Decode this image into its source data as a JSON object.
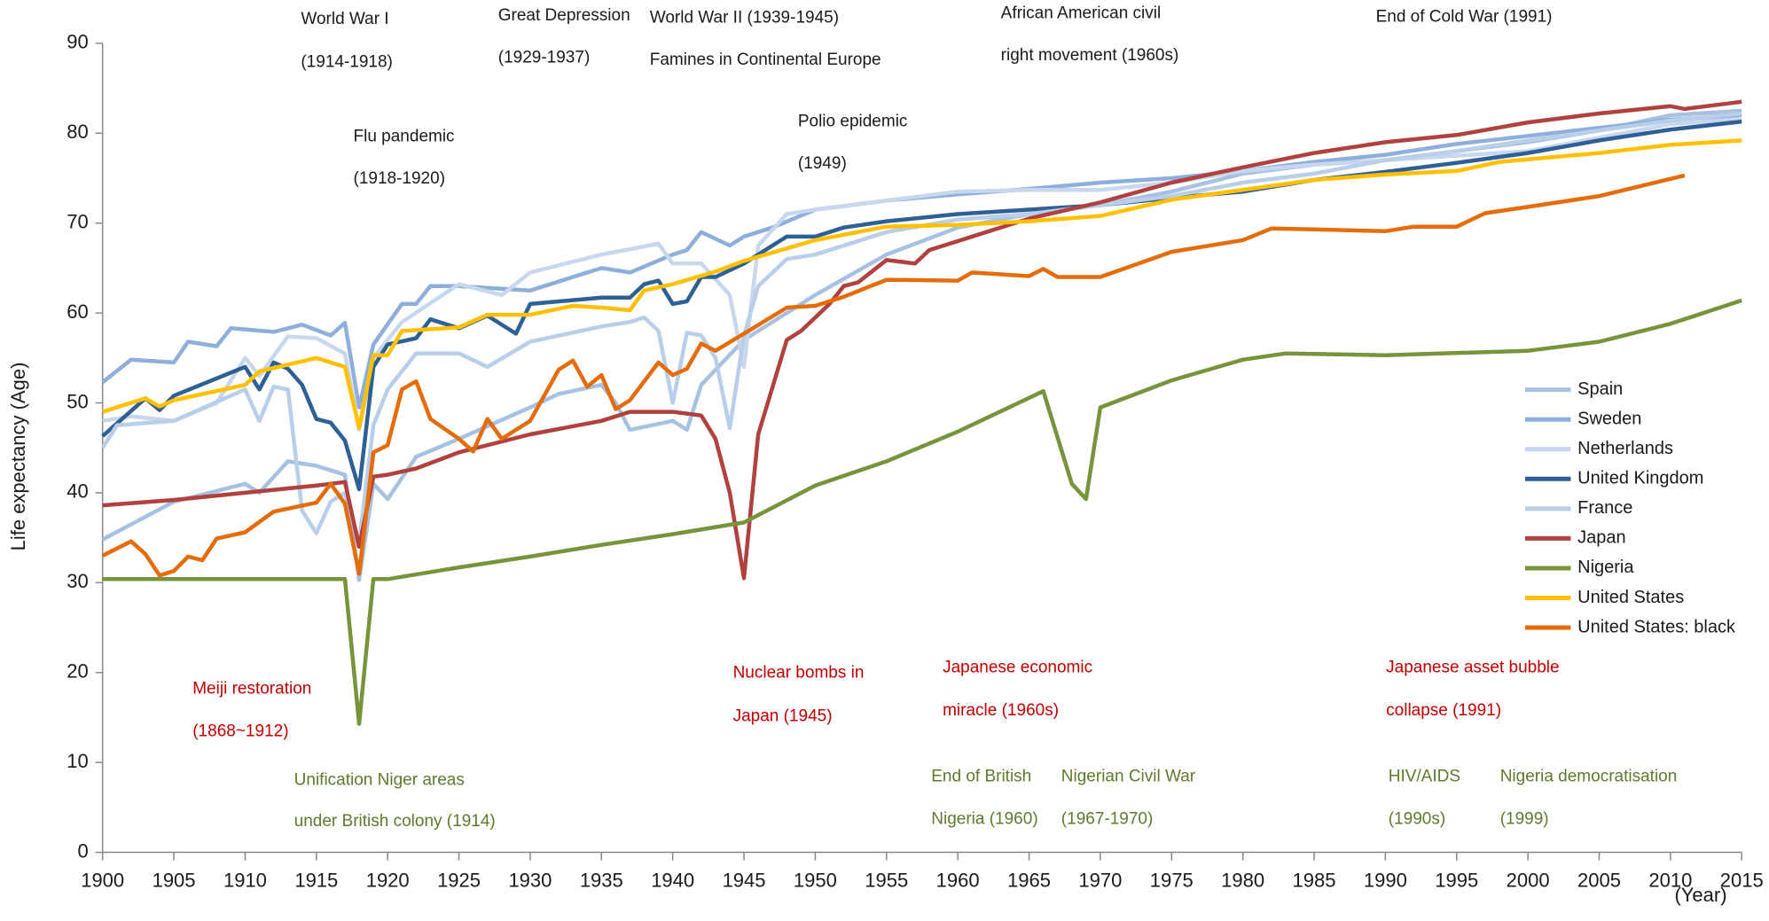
{
  "chart_data": {
    "type": "line",
    "ylabel": "Life expectancy (Age)",
    "xlabel": "(Year)",
    "xlim": [
      1900,
      2015
    ],
    "ylim": [
      0,
      90
    ],
    "xticks": [
      1900,
      1905,
      1910,
      1915,
      1920,
      1925,
      1930,
      1935,
      1940,
      1945,
      1950,
      1955,
      1960,
      1965,
      1970,
      1975,
      1980,
      1985,
      1990,
      1995,
      2000,
      2005,
      2010,
      2015
    ],
    "yticks": [
      0,
      10,
      20,
      30,
      40,
      50,
      60,
      70,
      80,
      90
    ],
    "legend": "right",
    "series": [
      {
        "name": "Spain",
        "color": "#a7c1e2",
        "x": [
          1900,
          1905,
          1910,
          1911,
          1913,
          1915,
          1917,
          1918,
          1919,
          1920,
          1922,
          1925,
          1930,
          1932,
          1935,
          1936,
          1937,
          1940,
          1941,
          1942,
          1945,
          1946,
          1950,
          1955,
          1960,
          1965,
          1970,
          1975,
          1980,
          1985,
          1990,
          1995,
          2000,
          2005,
          2010,
          2015
        ],
        "values": [
          34.8,
          39,
          41,
          40,
          43.5,
          43,
          42,
          30.3,
          41,
          39.3,
          44,
          46,
          49.5,
          51,
          52,
          50,
          47,
          48,
          47,
          52,
          57,
          58,
          62,
          66.5,
          69.5,
          71,
          72,
          73.5,
          75.5,
          76.5,
          77,
          78,
          79,
          80.3,
          82,
          82.5
        ]
      },
      {
        "name": "Sweden",
        "color": "#8eafdc",
        "x": [
          1900,
          1902,
          1905,
          1906,
          1908,
          1909,
          1912,
          1914,
          1916,
          1917,
          1918,
          1919,
          1921,
          1922,
          1923,
          1925,
          1930,
          1935,
          1937,
          1940,
          1941,
          1942,
          1944,
          1945,
          1947,
          1950,
          1955,
          1960,
          1965,
          1970,
          1975,
          1980,
          1985,
          1990,
          1995,
          2000,
          2005,
          2010,
          2015
        ],
        "values": [
          52.3,
          54.8,
          54.5,
          56.8,
          56.3,
          58.3,
          57.9,
          58.7,
          57.5,
          58.9,
          49.5,
          56.5,
          61,
          61,
          63,
          63,
          62.5,
          65,
          64.5,
          66.5,
          67,
          69,
          67.5,
          68.5,
          69.5,
          71.5,
          72.5,
          73.2,
          73.8,
          74.5,
          75,
          75.8,
          76.8,
          77.6,
          78.8,
          79.7,
          80.6,
          81.5,
          82
        ]
      },
      {
        "name": "Netherlands",
        "color": "#c6d7ee",
        "x": [
          1900,
          1902,
          1905,
          1908,
          1910,
          1911,
          1913,
          1915,
          1917,
          1918,
          1919,
          1921,
          1925,
          1928,
          1930,
          1935,
          1939,
          1940,
          1942,
          1944,
          1945,
          1946,
          1948,
          1950,
          1955,
          1960,
          1965,
          1970,
          1975,
          1980,
          1985,
          1990,
          1995,
          2000,
          2005,
          2010,
          2015
        ],
        "values": [
          48,
          48.5,
          48,
          50,
          55,
          53,
          57.4,
          57.2,
          55.5,
          47,
          55,
          59,
          63.2,
          62,
          64.5,
          66.5,
          67.7,
          65.5,
          65.5,
          62,
          54,
          67.5,
          71,
          71.5,
          72.5,
          73.5,
          73.7,
          73.7,
          74.5,
          75.8,
          76.5,
          77,
          77.5,
          78,
          79.5,
          81,
          81.6
        ]
      },
      {
        "name": "United Kingdom",
        "color": "#2e5f95",
        "x": [
          1900,
          1903,
          1904,
          1905,
          1910,
          1911,
          1912,
          1913,
          1914,
          1915,
          1916,
          1917,
          1918,
          1919,
          1920,
          1922,
          1923,
          1925,
          1927,
          1929,
          1930,
          1935,
          1937,
          1938,
          1939,
          1940,
          1941,
          1942,
          1943,
          1945,
          1948,
          1950,
          1952,
          1955,
          1960,
          1965,
          1970,
          1975,
          1980,
          1985,
          1990,
          1995,
          2000,
          2005,
          2010,
          2015
        ],
        "values": [
          46.3,
          50.5,
          49.2,
          50.8,
          54,
          51.5,
          54.5,
          53.8,
          52,
          48.2,
          47.8,
          45.8,
          40.4,
          54,
          56.5,
          57.2,
          59.3,
          58.3,
          59.7,
          57.7,
          61,
          61.7,
          61.7,
          63.2,
          63.6,
          61,
          61.3,
          64,
          64,
          65.5,
          68.5,
          68.5,
          69.5,
          70.2,
          71,
          71.5,
          72,
          72.8,
          73.5,
          74.8,
          75.7,
          76.7,
          77.8,
          79.2,
          80.4,
          81.3
        ]
      },
      {
        "name": "France",
        "color": "#b9cee9",
        "x": [
          1900,
          1901,
          1905,
          1910,
          1911,
          1912,
          1913,
          1914,
          1915,
          1916,
          1917,
          1918,
          1919,
          1920,
          1922,
          1925,
          1927,
          1930,
          1935,
          1937,
          1938,
          1939,
          1940,
          1941,
          1942,
          1943,
          1944,
          1945,
          1946,
          1948,
          1950,
          1955,
          1960,
          1965,
          1970,
          1975,
          1980,
          1985,
          1990,
          1995,
          2000,
          2005,
          2010,
          2015
        ],
        "values": [
          45,
          47.5,
          48,
          51.5,
          48,
          51.8,
          51.5,
          38,
          35.5,
          39,
          40,
          34.5,
          47.5,
          51.5,
          55.5,
          55.5,
          54,
          56.8,
          58.5,
          59,
          59.5,
          58,
          50,
          57.8,
          57.5,
          55,
          47.2,
          57.5,
          63,
          66,
          66.5,
          69,
          70.4,
          71,
          72,
          73,
          74.5,
          75.5,
          77,
          78,
          79.2,
          80.3,
          81.4,
          82.2
        ]
      },
      {
        "name": "Japan",
        "color": "#b0413e",
        "x": [
          1900,
          1905,
          1910,
          1915,
          1917,
          1918,
          1919,
          1920,
          1922,
          1925,
          1930,
          1935,
          1937,
          1940,
          1942,
          1943,
          1944,
          1945,
          1946,
          1948,
          1949,
          1950,
          1951,
          1952,
          1953,
          1955,
          1957,
          1958,
          1960,
          1962,
          1965,
          1970,
          1975,
          1980,
          1985,
          1990,
          1995,
          2000,
          2005,
          2010,
          2011,
          2015
        ],
        "values": [
          38.6,
          39.2,
          40,
          40.8,
          41.2,
          34,
          41.8,
          42,
          42.7,
          44.5,
          46.5,
          48,
          49,
          49,
          48.6,
          46,
          40,
          30.5,
          46.5,
          57,
          58,
          59.5,
          61,
          63,
          63.4,
          65.9,
          65.5,
          67,
          68,
          69,
          70.5,
          72.3,
          74.5,
          76.2,
          77.8,
          79,
          79.8,
          81.2,
          82.2,
          83,
          82.7,
          83.5
        ]
      },
      {
        "name": "Nigeria",
        "color": "#77933c",
        "x": [
          1900,
          1917,
          1918,
          1919,
          1920,
          1925,
          1930,
          1935,
          1940,
          1945,
          1950,
          1955,
          1960,
          1966,
          1968,
          1969,
          1970,
          1975,
          1980,
          1983,
          1990,
          2000,
          2005,
          2010,
          2015
        ],
        "values": [
          30.4,
          30.4,
          14.3,
          30.4,
          30.4,
          31.7,
          32.9,
          34.2,
          35.4,
          36.7,
          40.8,
          43.5,
          46.8,
          51.3,
          41,
          39.3,
          49.5,
          52.5,
          54.8,
          55.5,
          55.3,
          55.8,
          56.8,
          58.8,
          61.4
        ]
      },
      {
        "name": "United States",
        "color": "#ffc000",
        "x": [
          1900,
          1903,
          1904,
          1905,
          1910,
          1911,
          1915,
          1917,
          1918,
          1919,
          1920,
          1921,
          1925,
          1927,
          1930,
          1933,
          1935,
          1937,
          1938,
          1940,
          1943,
          1945,
          1950,
          1955,
          1960,
          1965,
          1970,
          1975,
          1980,
          1985,
          1990,
          1995,
          1998,
          2000,
          2005,
          2010,
          2015
        ],
        "values": [
          49,
          50.5,
          49.6,
          50.3,
          52,
          53.5,
          55,
          54,
          47.2,
          55.3,
          55.3,
          58,
          58.4,
          59.8,
          59.8,
          60.8,
          60.6,
          60.3,
          62.5,
          63.2,
          64.6,
          65.8,
          68.1,
          69.6,
          69.8,
          70.2,
          70.8,
          72.6,
          73.7,
          74.8,
          75.4,
          75.8,
          76.8,
          77.1,
          77.8,
          78.7,
          79.2
        ]
      },
      {
        "name": "United States: black",
        "color": "#e46c0a",
        "x": [
          1900,
          1902,
          1903,
          1904,
          1905,
          1906,
          1907,
          1908,
          1910,
          1912,
          1915,
          1916,
          1917,
          1918,
          1919,
          1920,
          1921,
          1922,
          1923,
          1925,
          1926,
          1927,
          1928,
          1930,
          1932,
          1933,
          1934,
          1935,
          1936,
          1937,
          1939,
          1940,
          1941,
          1942,
          1943,
          1945,
          1948,
          1950,
          1952,
          1955,
          1960,
          1961,
          1965,
          1966,
          1967,
          1970,
          1975,
          1980,
          1982,
          1985,
          1990,
          1992,
          1995,
          1997,
          2000,
          2005,
          2011
        ],
        "values": [
          33,
          34.6,
          33.2,
          30.8,
          31.3,
          32.9,
          32.5,
          34.9,
          35.6,
          37.9,
          38.9,
          41,
          38.8,
          31,
          44.5,
          45.3,
          51.5,
          52.4,
          48.2,
          46,
          44.6,
          48.2,
          46,
          48,
          53.7,
          54.7,
          51.8,
          53.1,
          49.3,
          50.3,
          54.5,
          53.1,
          53.8,
          56.6,
          55.8,
          57.7,
          60.6,
          60.8,
          61.8,
          63.7,
          63.6,
          64.5,
          64.1,
          64.9,
          64,
          64,
          66.8,
          68.1,
          69.4,
          69.3,
          69.1,
          69.6,
          69.6,
          71.1,
          71.8,
          73,
          75.3
        ]
      }
    ],
    "annotations": [
      {
        "lines": [
          "World War I",
          "(1914-1918)"
        ],
        "color": "#1a1a1a"
      },
      {
        "lines": [
          "Great Depression",
          "(1929-1937)"
        ],
        "color": "#1a1a1a"
      },
      {
        "lines": [
          "World War II (1939-1945)",
          "Famines in Continental Europe"
        ],
        "color": "#1a1a1a"
      },
      {
        "lines": [
          "African American civil",
          "right movement (1960s)"
        ],
        "color": "#1a1a1a"
      },
      {
        "lines": [
          "End of Cold War (1991)"
        ],
        "color": "#1a1a1a"
      },
      {
        "lines": [
          "Flu pandemic",
          "(1918-1920)"
        ],
        "color": "#1a1a1a"
      },
      {
        "lines": [
          "Polio epidemic",
          "(1949)"
        ],
        "color": "#1a1a1a"
      },
      {
        "lines": [
          "Meiji restoration",
          "(1868~1912)"
        ],
        "color": "#c00000"
      },
      {
        "lines": [
          "Nuclear bombs in",
          "Japan (1945)"
        ],
        "color": "#c00000"
      },
      {
        "lines": [
          "Japanese economic",
          "miracle (1960s)"
        ],
        "color": "#c00000"
      },
      {
        "lines": [
          "Japanese asset bubble",
          "collapse (1991)"
        ],
        "color": "#c00000"
      },
      {
        "lines": [
          "Unification Niger areas",
          "under British colony (1914)"
        ],
        "color": "#5d7a2e"
      },
      {
        "lines": [
          "End of British",
          "Nigeria (1960)"
        ],
        "color": "#5d7a2e"
      },
      {
        "lines": [
          "Nigerian Civil War",
          "(1967-1970)"
        ],
        "color": "#5d7a2e"
      },
      {
        "lines": [
          "HIV/AIDS",
          "(1990s)"
        ],
        "color": "#5d7a2e"
      },
      {
        "lines": [
          "Nigeria democratisation",
          "(1999)"
        ],
        "color": "#5d7a2e"
      }
    ]
  }
}
